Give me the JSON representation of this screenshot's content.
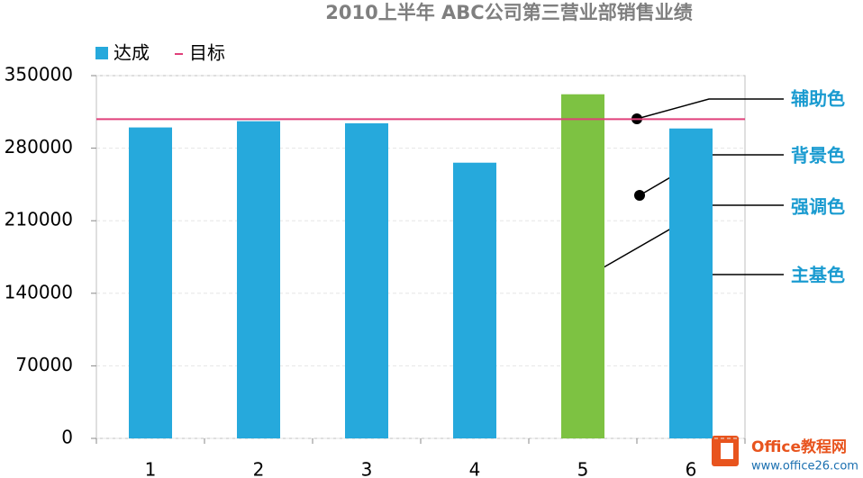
{
  "chart_data": {
    "type": "bar",
    "title": "2010上半年 ABC公司第三营业部销售业绩",
    "categories": [
      "1",
      "2",
      "3",
      "4",
      "5",
      "6"
    ],
    "series": [
      {
        "name": "达成",
        "color": "#26a9dc",
        "colors": [
          "#26a9dc",
          "#26a9dc",
          "#26a9dc",
          "#26a9dc",
          "#7dc242",
          "#26a9dc"
        ],
        "values": [
          300000,
          306000,
          304000,
          266000,
          332000,
          299000
        ]
      }
    ],
    "target": {
      "name": "目标",
      "color": "#e0407a",
      "value": 308000
    },
    "ylim": [
      0,
      350000
    ],
    "yticks": [
      0,
      70000,
      140000,
      210000,
      280000,
      350000
    ],
    "grid": true,
    "annotations": [
      "辅助色",
      "背景色",
      "强调色",
      "主基色"
    ]
  },
  "watermark": {
    "name": "Office教程网",
    "url": "www.office26.com"
  }
}
